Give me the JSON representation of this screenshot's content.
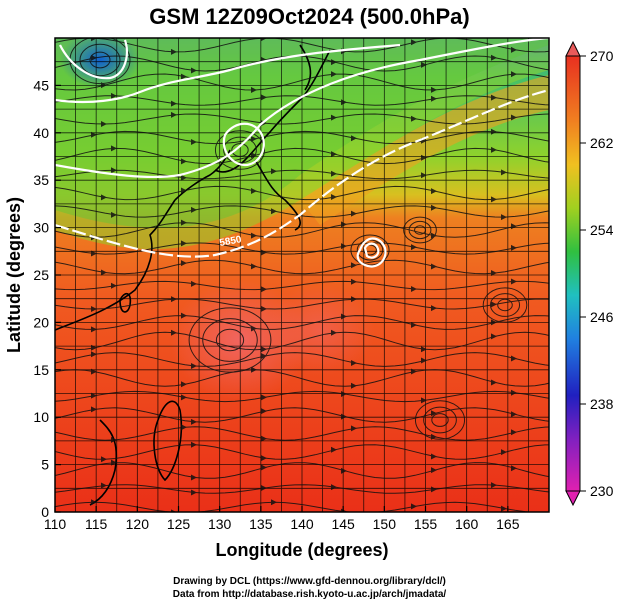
{
  "title": "GSM 12Z09Oct2024 (500.0hPa)",
  "x_axis": {
    "label": "Longitude (degrees)",
    "ticks": [
      "110",
      "115",
      "120",
      "125",
      "130",
      "135",
      "140",
      "145",
      "150",
      "155",
      "160",
      "165"
    ]
  },
  "y_axis": {
    "label": "Latitude  (degrees)",
    "ticks": [
      "0",
      "5",
      "10",
      "15",
      "20",
      "25",
      "30",
      "35",
      "40",
      "45"
    ]
  },
  "colorbar": {
    "ticks": [
      "230",
      "238",
      "246",
      "254",
      "262",
      "270"
    ]
  },
  "contour_label": "5850",
  "credits": {
    "line1": "Drawing by DCL (https://www.gfd-dennou.org/library/dcl/)",
    "line2": "Data from http://database.rish.kyoto-u.ac.jp/arch/jmadata/"
  }
}
